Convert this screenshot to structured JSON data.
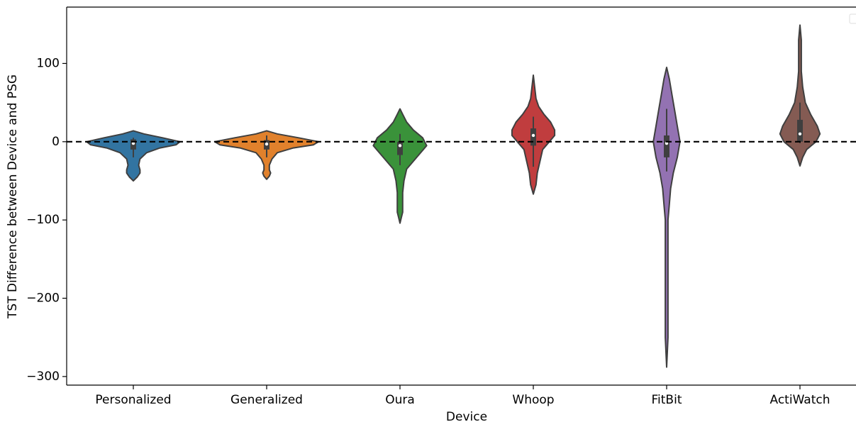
{
  "chart_data": {
    "type": "violin",
    "xlabel": "Device",
    "ylabel": "TST Difference between Device and PSG",
    "categories": [
      "Personalized",
      "Generalized",
      "Oura",
      "Whoop",
      "FitBit",
      "ActiWatch"
    ],
    "colors": [
      "#3274a1",
      "#e1812c",
      "#3a923a",
      "#c03d3e",
      "#9372b2",
      "#845b53"
    ],
    "violins": [
      {
        "y": [
          14,
          10,
          5,
          0,
          -4,
          -8,
          -14,
          -22,
          -30,
          -36,
          -40,
          -45,
          -50
        ],
        "width": [
          0,
          0.08,
          0.22,
          0.35,
          0.32,
          0.2,
          0.1,
          0.05,
          0.04,
          0.05,
          0.05,
          0.03,
          0
        ],
        "whisker_low": -20,
        "q1": -10,
        "median": -2,
        "q3": 3,
        "whisker_high": 5
      },
      {
        "y": [
          14,
          10,
          5,
          0,
          -4,
          -8,
          -14,
          -22,
          -30,
          -36,
          -40,
          -44,
          -48
        ],
        "width": [
          0,
          0.08,
          0.24,
          0.39,
          0.35,
          0.2,
          0.08,
          0.04,
          0.02,
          0.02,
          0.03,
          0.02,
          0
        ],
        "whisker_low": -20,
        "q1": -10,
        "median": -3,
        "q3": 2,
        "whisker_high": 8
      },
      {
        "y": [
          42,
          35,
          25,
          15,
          5,
          -5,
          -15,
          -25,
          -35,
          -50,
          -65,
          -80,
          -90,
          -97,
          -104
        ],
        "width": [
          0,
          0.02,
          0.05,
          0.1,
          0.17,
          0.2,
          0.15,
          0.1,
          0.05,
          0.03,
          0.02,
          0.02,
          0.02,
          0.01,
          0
        ],
        "whisker_low": -30,
        "q1": -17,
        "median": -5,
        "q3": 0,
        "whisker_high": 10
      },
      {
        "y": [
          85,
          70,
          55,
          45,
          35,
          25,
          15,
          8,
          0,
          -10,
          -25,
          -40,
          -55,
          -67
        ],
        "width": [
          0,
          0.01,
          0.02,
          0.04,
          0.08,
          0.13,
          0.16,
          0.16,
          0.12,
          0.07,
          0.05,
          0.03,
          0.02,
          0
        ],
        "whisker_low": -32,
        "q1": -5,
        "median": 8,
        "q3": 17,
        "whisker_high": 32
      },
      {
        "y": [
          95,
          80,
          60,
          40,
          20,
          0,
          -20,
          -40,
          -60,
          -80,
          -100,
          -150,
          -200,
          -250,
          -288
        ],
        "width": [
          0,
          0.02,
          0.04,
          0.06,
          0.08,
          0.1,
          0.08,
          0.05,
          0.03,
          0.02,
          0.01,
          0.01,
          0.01,
          0.01,
          0
        ],
        "whisker_low": -38,
        "q1": -20,
        "median": -2,
        "q3": 8,
        "whisker_high": 42
      },
      {
        "y": [
          149,
          130,
          110,
          90,
          70,
          50,
          35,
          20,
          10,
          0,
          -10,
          -20,
          -31
        ],
        "width": [
          0,
          0.01,
          0.01,
          0.01,
          0.02,
          0.04,
          0.08,
          0.13,
          0.15,
          0.12,
          0.05,
          0.02,
          0
        ],
        "whisker_low": -2,
        "q1": 0,
        "median": 10,
        "q3": 28,
        "whisker_high": 50
      }
    ],
    "reference_line": 0,
    "ylim": [
      -311,
      172
    ],
    "yticks": [
      {
        "value": -300,
        "label": "−300"
      },
      {
        "value": -200,
        "label": "−200"
      },
      {
        "value": -100,
        "label": "−100"
      },
      0,
      100
    ]
  }
}
